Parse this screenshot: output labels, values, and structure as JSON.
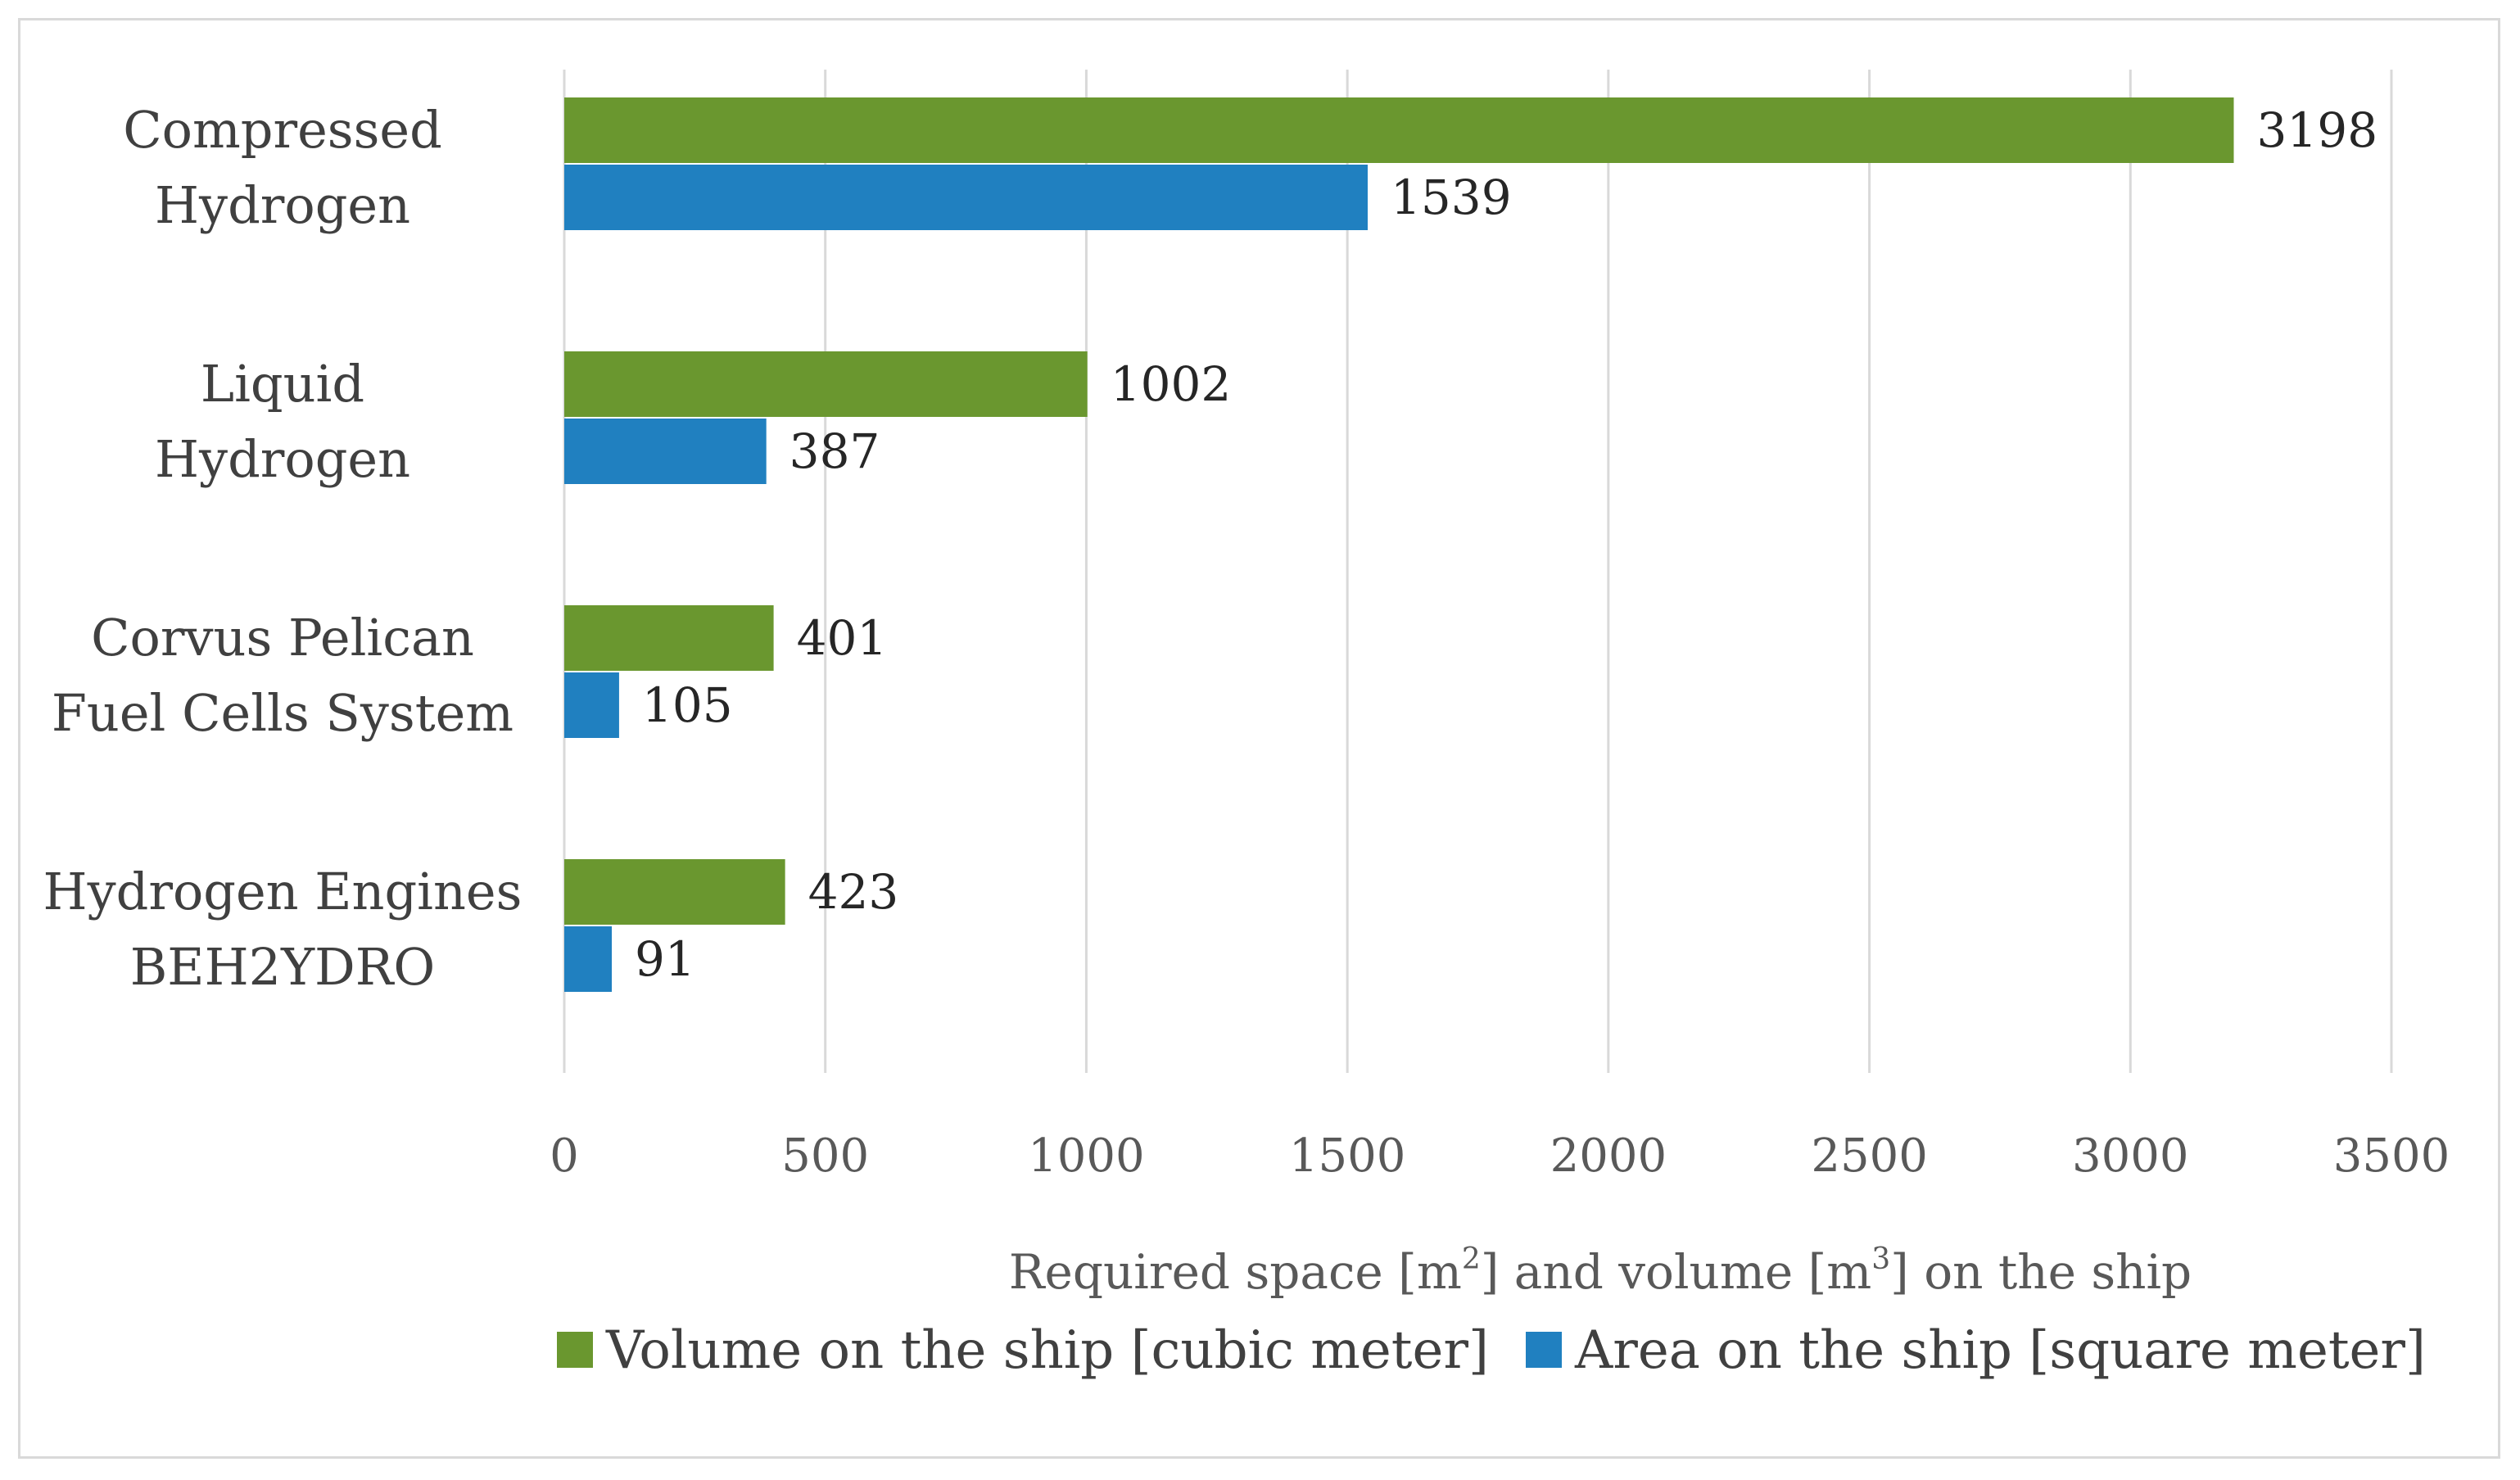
{
  "chart_data": {
    "type": "bar",
    "orientation": "horizontal",
    "categories": [
      [
        "Compressed",
        "Hydrogen"
      ],
      [
        "Liquid",
        "Hydrogen"
      ],
      [
        "Corvus Pelican",
        "Fuel Cells System"
      ],
      [
        "Hydrogen Engines",
        "BEH2YDRO"
      ]
    ],
    "series": [
      {
        "name": "Volume on the ship [cubic meter]",
        "color": "#6a972f",
        "values": [
          3198,
          1002,
          401,
          423
        ]
      },
      {
        "name": "Area on the ship [square meter]",
        "color": "#2080c0",
        "values": [
          1539,
          387,
          105,
          91
        ]
      }
    ],
    "xlim": [
      0,
      3500
    ],
    "xticks": [
      0,
      500,
      1000,
      1500,
      2000,
      2500,
      3000,
      3500
    ],
    "xlabel": {
      "parts": [
        "Required space [m",
        "2",
        "] and volume [m",
        "3",
        "] on the ship"
      ]
    },
    "grid": true,
    "legend": "bottom",
    "colors": {
      "grid": "#d9d9d9",
      "frame": "#d9d9d9"
    }
  }
}
